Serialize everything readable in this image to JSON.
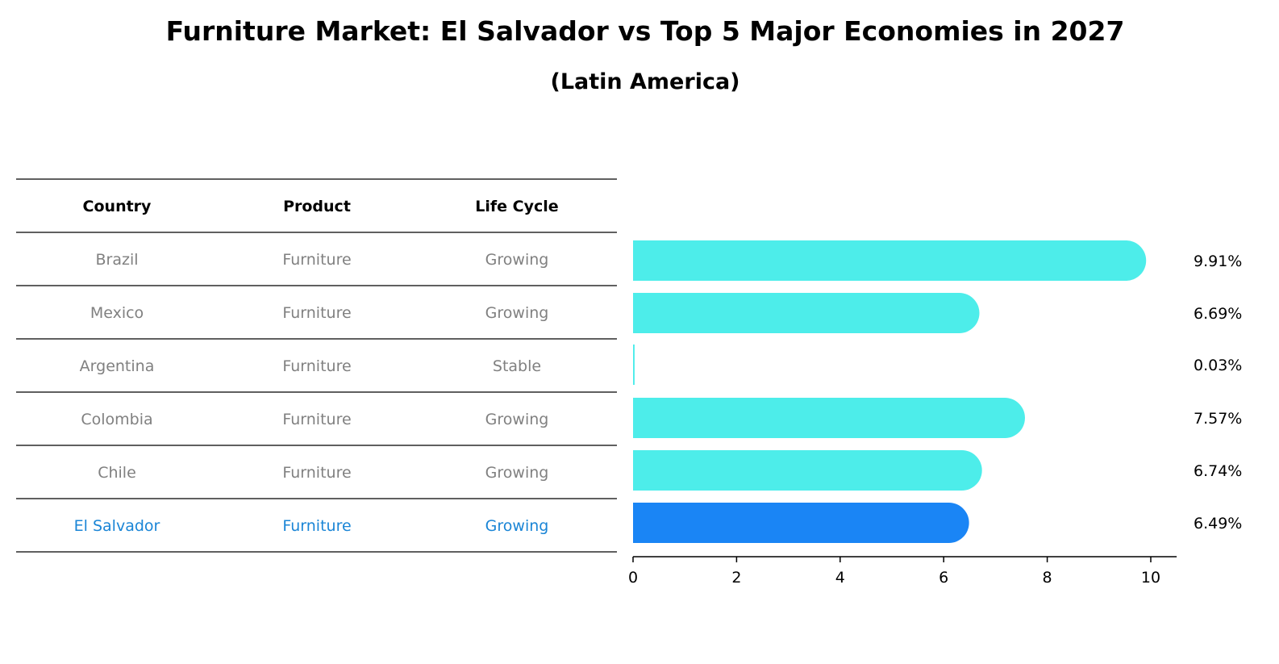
{
  "chart_data": {
    "type": "bar",
    "orientation": "horizontal",
    "title": "Furniture Market: El Salvador vs Top 5 Major Economies in 2027",
    "subtitle": "(Latin America)",
    "table": {
      "columns": [
        "Country",
        "Product",
        "Life Cycle"
      ],
      "rows": [
        {
          "country": "Brazil",
          "product": "Furniture",
          "life_cycle": "Growing"
        },
        {
          "country": "Mexico",
          "product": "Furniture",
          "life_cycle": "Growing"
        },
        {
          "country": "Argentina",
          "product": "Furniture",
          "life_cycle": "Stable"
        },
        {
          "country": "Colombia",
          "product": "Furniture",
          "life_cycle": "Growing"
        },
        {
          "country": "Chile",
          "product": "Furniture",
          "life_cycle": "Growing"
        },
        {
          "country": "El Salvador",
          "product": "Furniture",
          "life_cycle": "Growing"
        }
      ]
    },
    "categories": [
      "Brazil",
      "Mexico",
      "Argentina",
      "Colombia",
      "Chile",
      "El Salvador"
    ],
    "values": [
      9.91,
      6.69,
      0.03,
      7.57,
      6.74,
      6.49
    ],
    "value_labels": [
      "9.91%",
      "6.69%",
      "0.03%",
      "7.57%",
      "6.74%",
      "6.49%"
    ],
    "highlight": "El Salvador",
    "xlim": [
      0,
      10.5
    ],
    "xticks": [
      0,
      2,
      4,
      6,
      8,
      10
    ],
    "xtick_labels": [
      "0",
      "2",
      "4",
      "6",
      "8",
      "10"
    ],
    "grid": false,
    "legend": "none",
    "colors": {
      "bar": "#4DEDEA",
      "bar_highlight": "#1A85F5",
      "text_muted": "#808080",
      "text_highlight": "#1A85D6",
      "rule": "#000000"
    }
  }
}
